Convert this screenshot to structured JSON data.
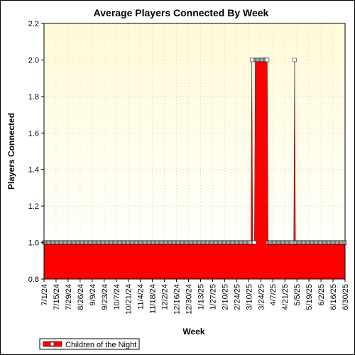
{
  "chart_data": {
    "type": "area",
    "title": "Average Players Connected By Week",
    "xlabel": "Week",
    "ylabel": "Players Connected",
    "ylim": [
      0.8,
      2.2
    ],
    "yticks": [
      "0.8",
      "1.0",
      "1.2",
      "1.4",
      "1.6",
      "1.8",
      "2.0",
      "2.2"
    ],
    "x_tick_labels": [
      "7/1/24",
      "7/15/24",
      "7/29/24",
      "8/26/24",
      "9/9/24",
      "9/23/24",
      "10/7/24",
      "10/21/24",
      "11/4/24",
      "11/18/24",
      "12/2/24",
      "12/16/24",
      "12/30/24",
      "1/13/25",
      "1/27/25",
      "2/10/25",
      "2/24/25",
      "3/10/25",
      "3/24/25",
      "4/7/25",
      "4/21/25",
      "5/5/25",
      "5/19/25",
      "6/2/25",
      "6/16/25",
      "6/30/25"
    ],
    "grid": true,
    "legend_position": "bottom-left",
    "colors": {
      "series": "#ff0000",
      "plot_bg_top": "#fffbd8",
      "plot_bg_bottom": "#ffffff"
    },
    "series": [
      {
        "name": "Children of the Night",
        "values": [
          1,
          1,
          1,
          1,
          1,
          1,
          1,
          1,
          1,
          1,
          1,
          1,
          1,
          1,
          1,
          1,
          1,
          1,
          1,
          1,
          1,
          1,
          1,
          1,
          1,
          1,
          1,
          1,
          1,
          1,
          1,
          1,
          1,
          1,
          1,
          1,
          1,
          1,
          1,
          1,
          1,
          1,
          1,
          1,
          1,
          1,
          1,
          1,
          1,
          1,
          1,
          1,
          1,
          1,
          1,
          1,
          1,
          1,
          1,
          1,
          1,
          1,
          1,
          1,
          1,
          1,
          1,
          1,
          1,
          1,
          1,
          1,
          1,
          1,
          1,
          1,
          1,
          1,
          1,
          1,
          1,
          1,
          1,
          1,
          1,
          1,
          1,
          1,
          1,
          1,
          1,
          1,
          1,
          1,
          1,
          1,
          1,
          1,
          1,
          1,
          1,
          1,
          1,
          1,
          1,
          1,
          1,
          1,
          1,
          1,
          1,
          1,
          1,
          1,
          1,
          1,
          1,
          1,
          1,
          1,
          1,
          1,
          1,
          1,
          1,
          1,
          1,
          1,
          1,
          1,
          1,
          1,
          1,
          1,
          1,
          1,
          1,
          1,
          1,
          1,
          1,
          1,
          1,
          1,
          1,
          1,
          1,
          1,
          1,
          1,
          1,
          1,
          1,
          1,
          1,
          1,
          1,
          1,
          1,
          1,
          1,
          1,
          1,
          1,
          1,
          1,
          1,
          1,
          1,
          1,
          1,
          1,
          1,
          1,
          1,
          1,
          1,
          1,
          1,
          1,
          1,
          1,
          1,
          1,
          1,
          1,
          1,
          1,
          1,
          1,
          1,
          1,
          1,
          1,
          1,
          1,
          1,
          1,
          1,
          1,
          1,
          1,
          1,
          1,
          1,
          1,
          1,
          1,
          1,
          1,
          1,
          1,
          1,
          1,
          1,
          1,
          1,
          1,
          1,
          1,
          1,
          1,
          1,
          1,
          1,
          1,
          1,
          1,
          1,
          1,
          1,
          1,
          1,
          1,
          1,
          1,
          1,
          1,
          1,
          1,
          1,
          1,
          1,
          2,
          1,
          1,
          1,
          2,
          2,
          2,
          2,
          2,
          2,
          2,
          2,
          2,
          2,
          2,
          2,
          2,
          2,
          2,
          1,
          1,
          1,
          1,
          1,
          1,
          1,
          1,
          1,
          1,
          1,
          1,
          1,
          1,
          1,
          1,
          1,
          1,
          1,
          1,
          1,
          1,
          1,
          1,
          1,
          1,
          1,
          1,
          1,
          1,
          1,
          2,
          1,
          1,
          1,
          1,
          1,
          1,
          1,
          1,
          1,
          1,
          1,
          1,
          1,
          1,
          1,
          1,
          1,
          1,
          1,
          1,
          1,
          1,
          1,
          1,
          1,
          1,
          1,
          1,
          1,
          1,
          1,
          1,
          1,
          1,
          1,
          1,
          1,
          1,
          1,
          1,
          1,
          1,
          1,
          1,
          1,
          1,
          1,
          1,
          1,
          1,
          1,
          1,
          1,
          1,
          1,
          1,
          1,
          1,
          1
        ]
      }
    ]
  }
}
